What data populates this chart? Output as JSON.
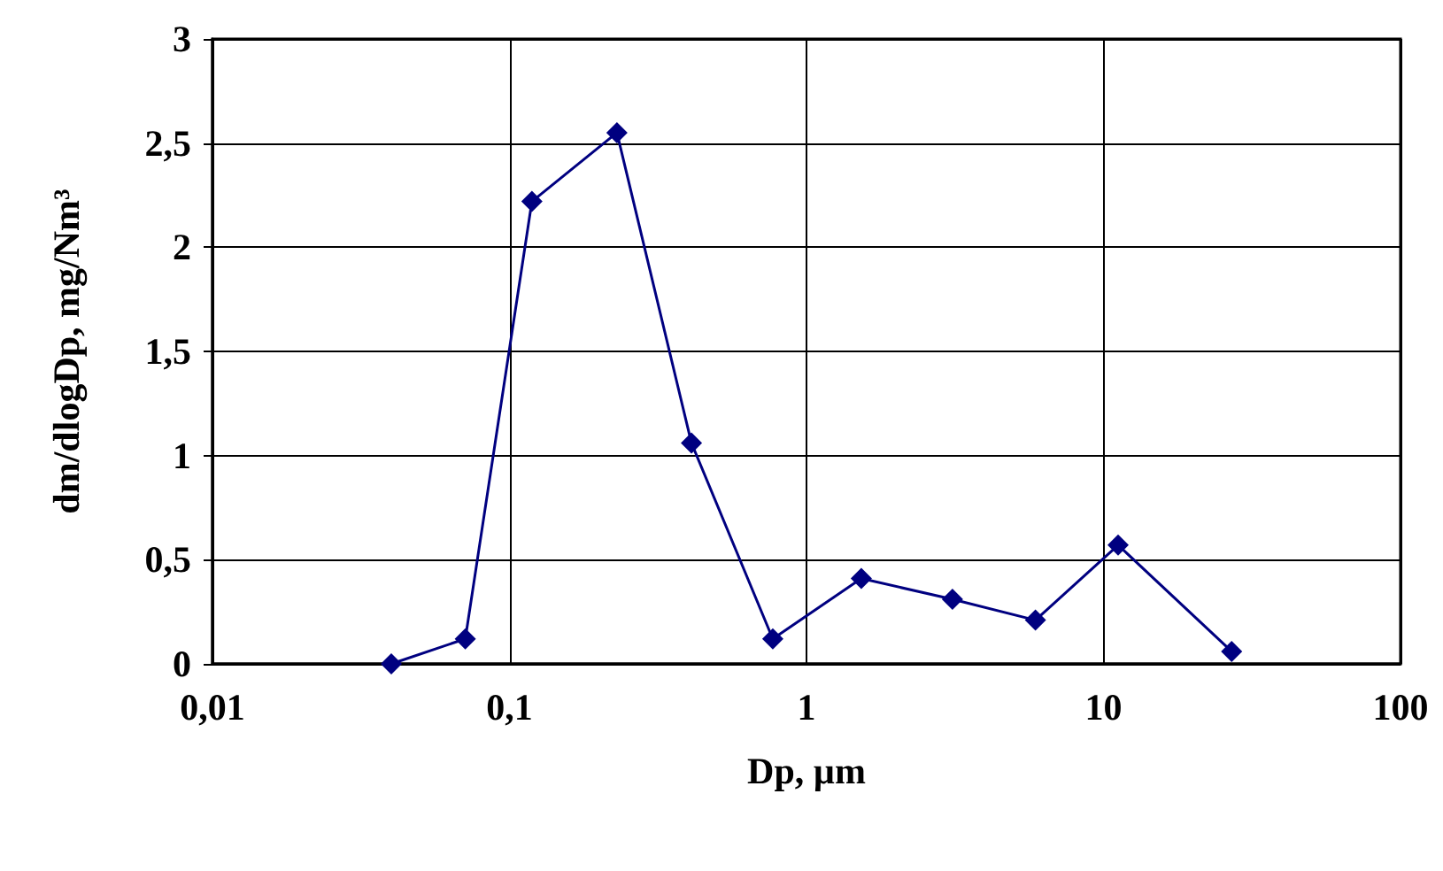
{
  "chart_data": {
    "type": "line",
    "xlabel": "Dp, µm",
    "ylabel": "dm/dlogDp, mg/Nm³",
    "log": "x",
    "grid": true,
    "marker": "diamond",
    "line_style": "solid",
    "xlim": [
      0.01,
      100
    ],
    "xticks": [
      {
        "value": 0.01,
        "label": "0,01"
      },
      {
        "value": 0.1,
        "label": "0,1"
      },
      1,
      10,
      100
    ],
    "ylim": [
      0,
      3
    ],
    "yticks": [
      0,
      {
        "value": 0.5,
        "label": "0,5"
      },
      1,
      {
        "value": 1.5,
        "label": "1,5"
      },
      2,
      {
        "value": 2.5,
        "label": "2,5"
      },
      3
    ],
    "series": [
      {
        "color": "#000080",
        "x": [
          0.04,
          0.071,
          0.119,
          0.23,
          0.41,
          0.77,
          1.53,
          3.1,
          5.9,
          11.2,
          27
        ],
        "values": [
          0,
          0.12,
          2.22,
          2.55,
          1.06,
          0.12,
          0.41,
          0.31,
          0.21,
          0.57,
          0.06
        ]
      }
    ]
  }
}
